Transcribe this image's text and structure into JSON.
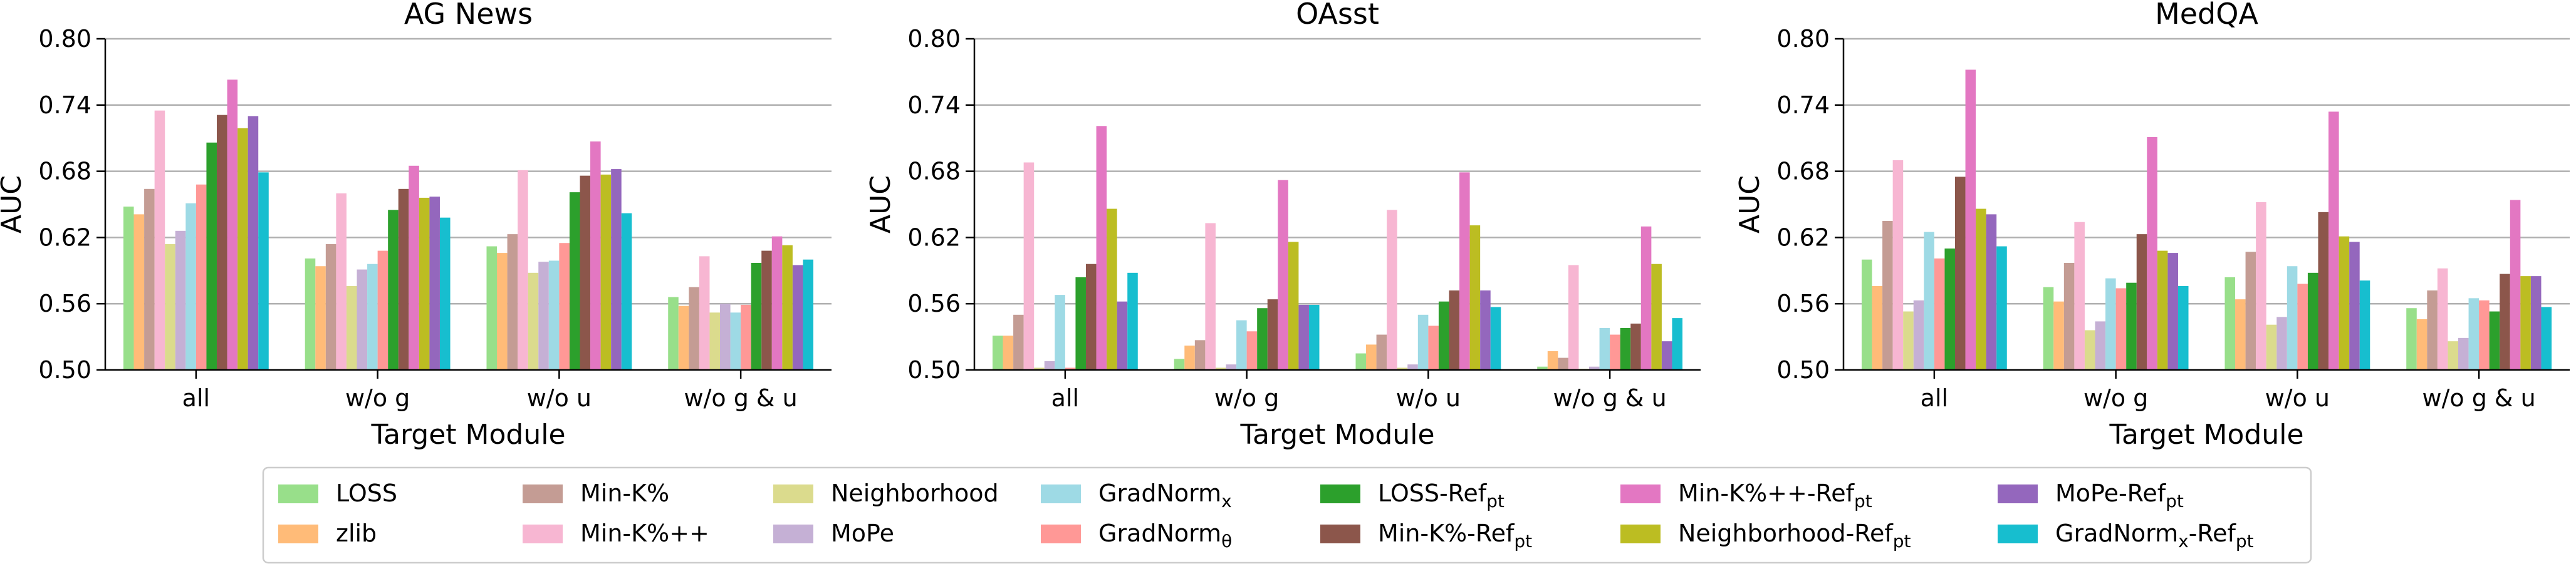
{
  "chart_data": [
    {
      "type": "bar",
      "title": "AG News",
      "xlabel": "Target Module",
      "ylabel": "AUC",
      "ylim": [
        0.5,
        0.8
      ],
      "yticks": [
        "0.50",
        "0.56",
        "0.62",
        "0.68",
        "0.74",
        "0.80"
      ],
      "categories": [
        "all",
        "w/o g",
        "w/o u",
        "w/o g & u"
      ],
      "grid": "horizontal",
      "series": [
        {
          "name": "LOSS",
          "values": [
            0.648,
            0.601,
            0.612,
            0.566
          ]
        },
        {
          "name": "zlib",
          "values": [
            0.641,
            0.594,
            0.606,
            0.558
          ]
        },
        {
          "name": "Min-K%",
          "values": [
            0.664,
            0.614,
            0.623,
            0.575
          ]
        },
        {
          "name": "Min-K%++",
          "values": [
            0.735,
            0.66,
            0.681,
            0.603
          ]
        },
        {
          "name": "Neighborhood",
          "values": [
            0.614,
            0.576,
            0.588,
            0.552
          ]
        },
        {
          "name": "MoPe",
          "values": [
            0.626,
            0.591,
            0.598,
            0.56
          ]
        },
        {
          "name": "GradNorm_x",
          "values": [
            0.651,
            0.596,
            0.599,
            0.552
          ]
        },
        {
          "name": "GradNorm_θ",
          "values": [
            0.668,
            0.608,
            0.615,
            0.559
          ]
        },
        {
          "name": "LOSS-Ref_pt",
          "values": [
            0.706,
            0.645,
            0.661,
            0.597
          ]
        },
        {
          "name": "Min-K%-Ref_pt",
          "values": [
            0.731,
            0.664,
            0.676,
            0.608
          ]
        },
        {
          "name": "Min-K%++-Ref_pt",
          "values": [
            0.763,
            0.685,
            0.707,
            0.621
          ]
        },
        {
          "name": "Neighborhood-Ref_pt",
          "values": [
            0.719,
            0.656,
            0.677,
            0.613
          ]
        },
        {
          "name": "MoPe-Ref_pt",
          "values": [
            0.73,
            0.657,
            0.682,
            0.595
          ]
        },
        {
          "name": "GradNorm_x-Ref_pt",
          "values": [
            0.679,
            0.638,
            0.642,
            0.6
          ]
        }
      ]
    },
    {
      "type": "bar",
      "title": "OAsst",
      "xlabel": "Target Module",
      "ylabel": "AUC",
      "ylim": [
        0.5,
        0.8
      ],
      "yticks": [
        "0.50",
        "0.56",
        "0.62",
        "0.68",
        "0.74",
        "0.80"
      ],
      "categories": [
        "all",
        "w/o g",
        "w/o u",
        "w/o g & u"
      ],
      "grid": "horizontal",
      "series": [
        {
          "name": "LOSS",
          "values": [
            0.531,
            0.51,
            0.515,
            0.503
          ]
        },
        {
          "name": "zlib",
          "values": [
            0.531,
            0.522,
            0.523,
            0.517
          ]
        },
        {
          "name": "Min-K%",
          "values": [
            0.55,
            0.527,
            0.532,
            0.511
          ]
        },
        {
          "name": "Min-K%++",
          "values": [
            0.688,
            0.633,
            0.645,
            0.595
          ]
        },
        {
          "name": "Neighborhood",
          "values": [
            0.502,
            0.502,
            0.502,
            0.501
          ]
        },
        {
          "name": "MoPe",
          "values": [
            0.508,
            0.505,
            0.505,
            0.503
          ]
        },
        {
          "name": "GradNorm_x",
          "values": [
            0.568,
            0.545,
            0.55,
            0.538
          ]
        },
        {
          "name": "GradNorm_θ",
          "values": [
            0.502,
            0.535,
            0.54,
            0.532
          ]
        },
        {
          "name": "LOSS-Ref_pt",
          "values": [
            0.584,
            0.556,
            0.562,
            0.538
          ]
        },
        {
          "name": "Min-K%-Ref_pt",
          "values": [
            0.596,
            0.564,
            0.572,
            0.542
          ]
        },
        {
          "name": "Min-K%++-Ref_pt",
          "values": [
            0.721,
            0.672,
            0.679,
            0.63
          ]
        },
        {
          "name": "Neighborhood-Ref_pt",
          "values": [
            0.646,
            0.616,
            0.631,
            0.596
          ]
        },
        {
          "name": "MoPe-Ref_pt",
          "values": [
            0.562,
            0.559,
            0.572,
            0.526
          ]
        },
        {
          "name": "GradNorm_x-Ref_pt",
          "values": [
            0.588,
            0.559,
            0.557,
            0.547
          ]
        }
      ]
    },
    {
      "type": "bar",
      "title": "MedQA",
      "xlabel": "Target Module",
      "ylabel": "AUC",
      "ylim": [
        0.5,
        0.8
      ],
      "yticks": [
        "0.50",
        "0.56",
        "0.62",
        "0.68",
        "0.74",
        "0.80"
      ],
      "categories": [
        "all",
        "w/o g",
        "w/o u",
        "w/o g & u"
      ],
      "grid": "horizontal",
      "series": [
        {
          "name": "LOSS",
          "values": [
            0.6,
            0.575,
            0.584,
            0.556
          ]
        },
        {
          "name": "zlib",
          "values": [
            0.576,
            0.562,
            0.564,
            0.546
          ]
        },
        {
          "name": "Min-K%",
          "values": [
            0.635,
            0.597,
            0.607,
            0.572
          ]
        },
        {
          "name": "Min-K%++",
          "values": [
            0.69,
            0.634,
            0.652,
            0.592
          ]
        },
        {
          "name": "Neighborhood",
          "values": [
            0.553,
            0.536,
            0.541,
            0.526
          ]
        },
        {
          "name": "MoPe",
          "values": [
            0.563,
            0.544,
            0.548,
            0.529
          ]
        },
        {
          "name": "GradNorm_x",
          "values": [
            0.625,
            0.583,
            0.594,
            0.565
          ]
        },
        {
          "name": "GradNorm_θ",
          "values": [
            0.601,
            0.574,
            0.578,
            0.563
          ]
        },
        {
          "name": "LOSS-Ref_pt",
          "values": [
            0.61,
            0.579,
            0.588,
            0.553
          ]
        },
        {
          "name": "Min-K%-Ref_pt",
          "values": [
            0.675,
            0.623,
            0.643,
            0.587
          ]
        },
        {
          "name": "Min-K%++-Ref_pt",
          "values": [
            0.772,
            0.711,
            0.734,
            0.654
          ]
        },
        {
          "name": "Neighborhood-Ref_pt",
          "values": [
            0.646,
            0.608,
            0.621,
            0.585
          ]
        },
        {
          "name": "MoPe-Ref_pt",
          "values": [
            0.641,
            0.606,
            0.616,
            0.585
          ]
        },
        {
          "name": "GradNorm_x-Ref_pt",
          "values": [
            0.612,
            0.576,
            0.581,
            0.557
          ]
        }
      ]
    }
  ],
  "legend": {
    "placement": "bottom",
    "entries": [
      {
        "key": "LOSS",
        "base": "LOSS",
        "sub": "",
        "color": "#98df8a"
      },
      {
        "key": "zlib",
        "base": "zlib",
        "sub": "",
        "color": "#ffbb78"
      },
      {
        "key": "Min-K%",
        "base": "Min-K%",
        "sub": "",
        "color": "#c49c94"
      },
      {
        "key": "Min-K%++",
        "base": "Min-K%++",
        "sub": "",
        "color": "#f7b6d2"
      },
      {
        "key": "Neighborhood",
        "base": "Neighborhood",
        "sub": "",
        "color": "#dbdb8d"
      },
      {
        "key": "MoPe",
        "base": "MoPe",
        "sub": "",
        "color": "#c5b0d5"
      },
      {
        "key": "GradNorm_x",
        "base": "GradNorm",
        "sub": "x",
        "color": "#9edae5"
      },
      {
        "key": "GradNorm_θ",
        "base": "GradNorm",
        "sub": "θ",
        "color": "#ff9896"
      },
      {
        "key": "LOSS-Ref_pt",
        "base": "LOSS-Ref",
        "sub": "pt",
        "color": "#2ca02c"
      },
      {
        "key": "Min-K%-Ref_pt",
        "base": "Min-K%-Ref",
        "sub": "pt",
        "color": "#8c564b"
      },
      {
        "key": "Min-K%++-Ref_pt",
        "base": "Min-K%++-Ref",
        "sub": "pt",
        "color": "#e377c2"
      },
      {
        "key": "Neighborhood-Ref_pt",
        "base": "Neighborhood-Ref",
        "sub": "pt",
        "color": "#bcbd22"
      },
      {
        "key": "MoPe-Ref_pt",
        "base": "MoPe-Ref",
        "sub": "pt",
        "color": "#9467bd"
      },
      {
        "key": "GradNorm_x-Ref_pt",
        "base": "GradNorm",
        "sub": "x",
        "tail": "-Ref",
        "sub2": "pt",
        "color": "#17becf"
      }
    ]
  }
}
